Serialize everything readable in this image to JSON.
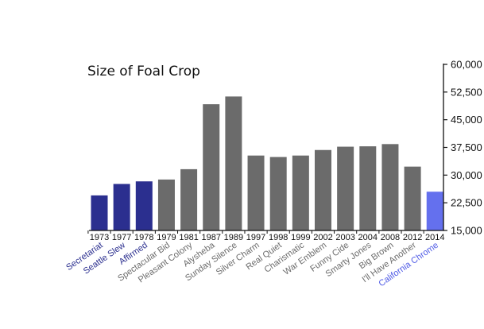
{
  "chart_data": {
    "type": "bar",
    "title": "Size of Foal Crop",
    "xlabel": "",
    "ylabel": "",
    "categories": [
      "1973",
      "1977",
      "1978",
      "1979",
      "1981",
      "1987",
      "1989",
      "1997",
      "1998",
      "1999",
      "2002",
      "2003",
      "2004",
      "2008",
      "2012",
      "2014"
    ],
    "horse_labels": [
      "Secretariat",
      "Seattle Slew",
      "Affirmed",
      "Spectacular Bid",
      "Pleasant Colony",
      "Alysheba",
      "Sunday Silence",
      "Silver Charm",
      "Real Quiet",
      "Charismatic",
      "War Emblem",
      "Funny Cide",
      "Smarty Jones",
      "Big Brown",
      "I'll Have Another",
      "California Chrome"
    ],
    "values": [
      24500,
      27600,
      28300,
      28800,
      31600,
      49200,
      51300,
      35300,
      34900,
      35300,
      36800,
      37700,
      37800,
      38400,
      32300,
      25500
    ],
    "groups": [
      "triple_crown",
      "triple_crown",
      "triple_crown",
      "other",
      "other",
      "other",
      "other",
      "other",
      "other",
      "other",
      "other",
      "other",
      "other",
      "other",
      "other",
      "highlight"
    ],
    "colors": {
      "triple_crown": "#2b2f8f",
      "other": "#6b6b6b",
      "highlight": "#6470ee",
      "label_triple_crown": "#2b2f8f",
      "label_other": "#6b6b6b",
      "label_highlight": "#4f5be6"
    },
    "ylim": [
      15000,
      60000
    ],
    "yticks": [
      15000,
      22500,
      30000,
      37500,
      45000,
      52500,
      60000
    ],
    "ytick_labels": [
      "15,000",
      "22,500",
      "30,000",
      "37,500",
      "45,000",
      "52,500",
      "60,000"
    ],
    "y_axis_side": "right",
    "grid": false,
    "legend": "none"
  }
}
